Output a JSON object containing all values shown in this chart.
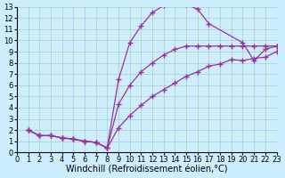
{
  "background_color": "#cceeff",
  "grid_color": "#aaccbb",
  "line_color": "#993399",
  "marker": "+",
  "markersize": 4,
  "linewidth": 0.9,
  "xlim": [
    0,
    23
  ],
  "ylim": [
    0,
    13
  ],
  "xticks": [
    0,
    1,
    2,
    3,
    4,
    5,
    6,
    7,
    8,
    9,
    10,
    11,
    12,
    13,
    14,
    15,
    16,
    17,
    18,
    19,
    20,
    21,
    22,
    23
  ],
  "yticks": [
    0,
    1,
    2,
    3,
    4,
    5,
    6,
    7,
    8,
    9,
    10,
    11,
    12,
    13
  ],
  "xlabel": "Windchill (Refroidissement éolien,°C)",
  "xlabel_fontsize": 7,
  "tick_fontsize": 6,
  "curve1_x": [
    1,
    2,
    3,
    4,
    5,
    6,
    7,
    8,
    9,
    10,
    11,
    12,
    13,
    14,
    15,
    16,
    17,
    20,
    21,
    22,
    23
  ],
  "curve1_y": [
    2,
    1.5,
    1.5,
    1.3,
    1.2,
    1.0,
    0.9,
    0.4,
    6.5,
    9.8,
    11.3,
    12.5,
    13.1,
    13.3,
    13.2,
    12.8,
    11.5,
    9.8,
    8.2,
    9.2,
    9.5
  ],
  "curve2_x": [
    1,
    2,
    3,
    4,
    5,
    6,
    7,
    8,
    9,
    10,
    11,
    12,
    13,
    14,
    15,
    16,
    17,
    18,
    19,
    20,
    21,
    22,
    23
  ],
  "curve2_y": [
    2,
    1.5,
    1.5,
    1.3,
    1.2,
    1.0,
    0.9,
    0.4,
    4.3,
    6.0,
    7.2,
    8.0,
    8.7,
    9.2,
    9.5,
    9.5,
    9.5,
    9.5,
    9.5,
    9.5,
    9.5,
    9.5,
    9.5
  ],
  "curve3_x": [
    1,
    2,
    3,
    4,
    5,
    6,
    7,
    8,
    9,
    10,
    11,
    12,
    13,
    14,
    15,
    16,
    17,
    18,
    19,
    20,
    21,
    22,
    23
  ],
  "curve3_y": [
    2,
    1.5,
    1.5,
    1.3,
    1.2,
    1.0,
    0.9,
    0.4,
    2.2,
    3.3,
    4.2,
    5.0,
    5.6,
    6.2,
    6.8,
    7.2,
    7.7,
    7.9,
    8.3,
    8.2,
    8.4,
    8.5,
    9.0
  ]
}
